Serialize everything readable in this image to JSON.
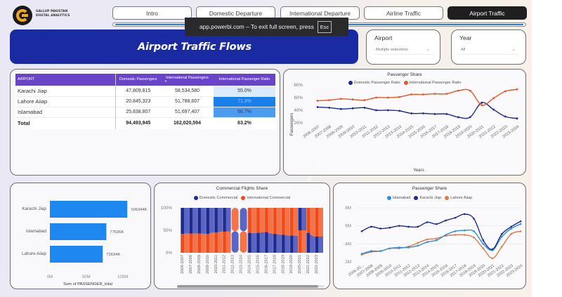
{
  "logo": {
    "line1": "GALLUP PAKISTAN",
    "line2": "DIGITAL ANALYTICS"
  },
  "nav": {
    "tabs": [
      {
        "label": "Intro",
        "active": false
      },
      {
        "label": "Domestic Departure",
        "active": false
      },
      {
        "label": "International Departure",
        "active": false
      },
      {
        "label": "Airline Traffic",
        "active": false
      },
      {
        "label": "Airport Traffic",
        "active": true
      }
    ]
  },
  "toast": {
    "message": "app.powerbi.com – To exit full screen, press",
    "key": "Esc"
  },
  "banner": {
    "title": "Airport Traffic Flows"
  },
  "slicers": {
    "airport": {
      "title": "Airport",
      "value": "Multiple selections"
    },
    "year": {
      "title": "Year",
      "value": "All"
    }
  },
  "colors": {
    "banner": "#1a2aa2",
    "table_header": "#6a44c8",
    "domestic": "#1e2a8c",
    "international": "#e8562a",
    "islamabad": "#2a8fe0",
    "karachi": "#1e2a8c",
    "lahore": "#e07a4a",
    "bar": "#1e88f0"
  },
  "table": {
    "headers": [
      "AIRPORT",
      "Domestic Passengers",
      "International Passengers",
      "International Passenger Ratio"
    ],
    "rows": [
      {
        "airport": "Karachi Jiap",
        "domestic": "47,809,815",
        "international": "58,534,580",
        "ratio": "55.0%",
        "ratio_value": 55.0
      },
      {
        "airport": "Lahore Aiiap",
        "domestic": "20,845,323",
        "international": "51,788,607",
        "ratio": "71.3%",
        "ratio_value": 71.3
      },
      {
        "airport": "Islamabad",
        "domestic": "25,838,807",
        "international": "51,697,407",
        "ratio": "66.7%",
        "ratio_value": 66.7
      }
    ],
    "total": {
      "label": "Total",
      "domestic": "94,493,945",
      "international": "162,020,594",
      "ratio": "63.2%"
    }
  },
  "chart_data": [
    {
      "type": "line",
      "title": "Passenger Share",
      "xlabel": "Years",
      "ylabel": "Passengers",
      "ylim": [
        20,
        80
      ],
      "yticks": [
        "20%",
        "40%",
        "60%",
        "80%"
      ],
      "ytick_values": [
        20,
        40,
        60,
        80
      ],
      "legend": "top",
      "x": [
        "2006-2007",
        "2007-2008",
        "2008-2009",
        "2009-2010",
        "2010-2011",
        "2011-2012",
        "2012-2013",
        "2013-2014",
        "2014-2015",
        "2015-2016",
        "2016-2017",
        "2017-2018",
        "2018-2019",
        "2019-2020",
        "2020-2021",
        "2021-2022",
        "2022-2023",
        "2023-2024"
      ],
      "series": [
        {
          "name": "Domestic Passenger Ratio",
          "color": "#1e2a8c",
          "values": [
            45,
            44,
            42,
            43,
            44,
            40,
            40,
            39,
            35,
            35,
            34,
            34,
            29,
            29,
            52,
            41,
            30,
            27
          ]
        },
        {
          "name": "International Passenger Ratio",
          "color": "#e8562a",
          "values": [
            55,
            56,
            58,
            57,
            56,
            60,
            60,
            61,
            65,
            65,
            66,
            66,
            71,
            71,
            48,
            59,
            70,
            73
          ]
        }
      ]
    },
    {
      "type": "bar",
      "orientation": "horizontal",
      "title": "",
      "xlabel": "Sum of PASSENGER_total",
      "categories": [
        "Karachi Jiap",
        "Islamabad",
        "Lahore Aiiap"
      ],
      "values": [
        106344,
        77536,
        72634
      ],
      "value_labels": [
        "106344K",
        "77536K",
        "72634K"
      ],
      "units": "thousands",
      "xlim": [
        0,
        110000
      ],
      "xticks": [
        "0M",
        "50M",
        "100M"
      ],
      "xtick_values": [
        0,
        50000,
        100000
      ]
    },
    {
      "type": "area",
      "subtype": "ribbon-100%",
      "title": "Commercial Flights Share",
      "legend": "top",
      "yticks": [
        "0%",
        "50%",
        "100%"
      ],
      "ytick_values": [
        0,
        50,
        100
      ],
      "x": [
        "2006-2007",
        "2007-2008",
        "2008-2009",
        "2009-2010",
        "2010-2011",
        "2011-2012",
        "2012-2013",
        "2013-2014",
        "2014-2015",
        "2015-2016",
        "2016-2017",
        "2017-2018",
        "2018-2019",
        "2019-2020",
        "2020-2021",
        "2021-2022",
        "2022-2023"
      ],
      "series": [
        {
          "name": "Domestic Commercial",
          "color": "#1e2a8c",
          "values": [
            58,
            57,
            57,
            58,
            55,
            53,
            48,
            52,
            44,
            44,
            46,
            42,
            40,
            38,
            50,
            44,
            36
          ]
        },
        {
          "name": "International Commercial",
          "color": "#f04a1a",
          "values": [
            42,
            43,
            43,
            42,
            45,
            47,
            52,
            48,
            56,
            56,
            54,
            58,
            60,
            62,
            50,
            56,
            64
          ]
        }
      ]
    },
    {
      "type": "line",
      "title": "Passenger Share",
      "legend": "top",
      "ylim": [
        2,
        8
      ],
      "yticks": [
        "2M",
        "4M",
        "6M",
        "8M"
      ],
      "ytick_values": [
        2,
        4,
        6,
        8
      ],
      "units": "millions",
      "x": [
        "2006-20...",
        "2007-2008",
        "2008-2009",
        "2009-2010",
        "2010-2011",
        "2011-2012",
        "2012-2013",
        "2013-2014",
        "2014-2015",
        "2015-2016",
        "2016-2017",
        "2017-2018",
        "2018-2019",
        "2019-2020",
        "2020-2021",
        "2021-2022",
        "2022-2023",
        "2023-2024"
      ],
      "series": [
        {
          "name": "Islamabad",
          "color": "#2a8fe0",
          "values": [
            2.9,
            3.2,
            3.2,
            3.5,
            3.6,
            3.6,
            3.8,
            4.2,
            4.4,
            5.0,
            5.4,
            5.5,
            5.4,
            4.0,
            3.3,
            4.8,
            5.7,
            6.2
          ]
        },
        {
          "name": "Karachi Jiap",
          "color": "#1e2a8c",
          "values": [
            5.4,
            5.9,
            5.7,
            5.8,
            6.0,
            5.9,
            5.9,
            6.4,
            6.2,
            6.6,
            6.9,
            7.3,
            6.8,
            4.4,
            3.4,
            5.1,
            5.9,
            6.5
          ]
        },
        {
          "name": "Lahore Aiiap",
          "color": "#e07a4a",
          "values": [
            2.8,
            3.1,
            3.2,
            3.5,
            3.5,
            3.7,
            4.1,
            4.5,
            4.6,
            4.9,
            5.0,
            5.0,
            4.7,
            3.5,
            2.4,
            3.7,
            5.1,
            5.4
          ]
        }
      ]
    }
  ]
}
